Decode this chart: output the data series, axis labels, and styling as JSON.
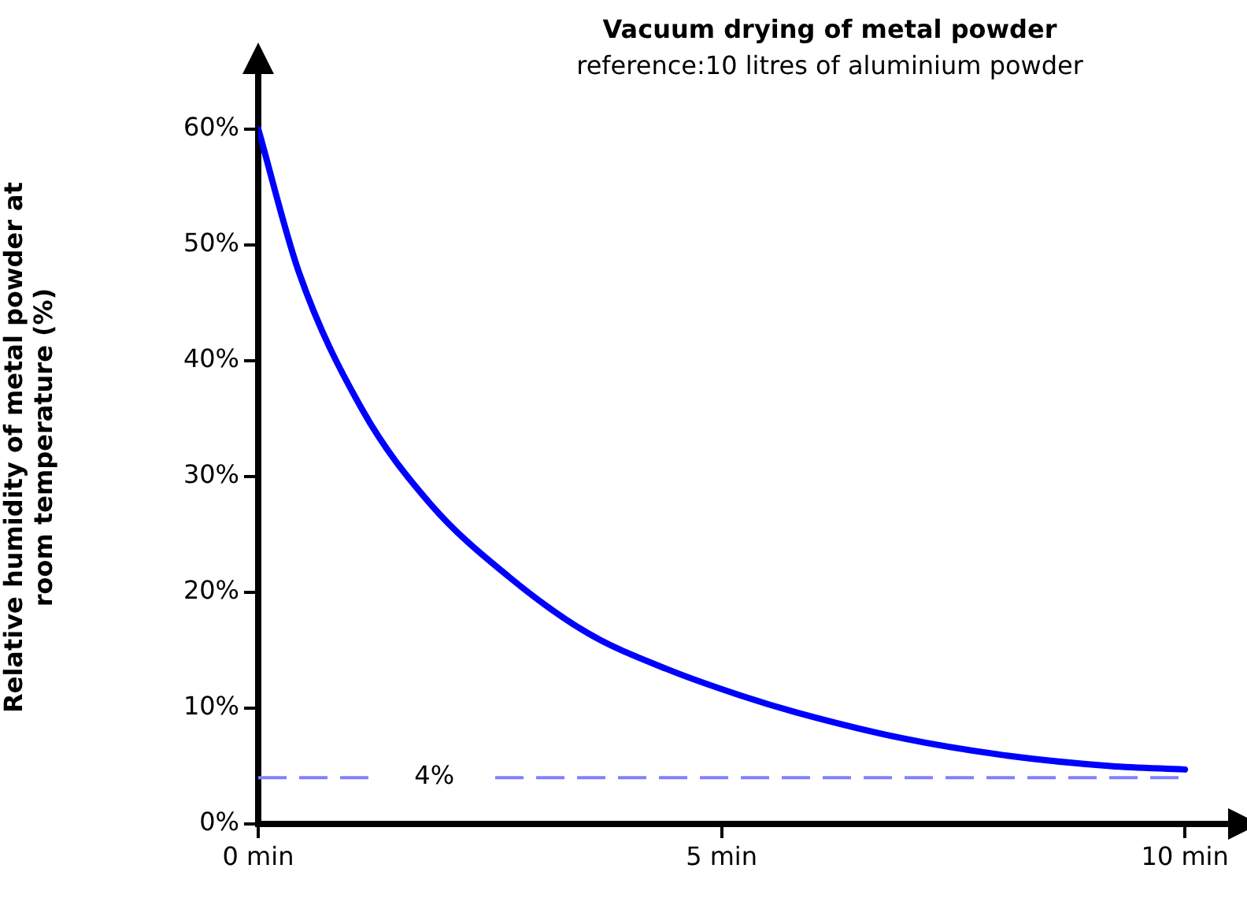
{
  "chart_data": {
    "type": "line",
    "title": "Vacuum drying of metal powder",
    "subtitle": "reference:10 litres of aluminium powder",
    "ylabel": "Relative humidity of metal powder at room temperature (%)",
    "series": [
      {
        "color": "#0000ff",
        "x": [
          0,
          0.44,
          1.12,
          1.86,
          2.71,
          3.55,
          4.4,
          5.2,
          5.82,
          6.95,
          8.08,
          9.2,
          10
        ],
        "values": [
          60,
          47.6,
          35.8,
          27.6,
          21.3,
          16.5,
          13.4,
          11.1,
          9.6,
          7.4,
          5.9,
          5,
          4.7
        ]
      }
    ],
    "xlim": [
      0,
      10.5
    ],
    "xticks": [
      {
        "value": 0,
        "label": "0 min"
      },
      {
        "value": 5,
        "label": "5 min"
      },
      {
        "value": 10,
        "label": "10 min"
      }
    ],
    "ylim": [
      0,
      65
    ],
    "yticks": [
      {
        "value": 0,
        "label": "0%"
      },
      {
        "value": 10,
        "label": "10%"
      },
      {
        "value": 20,
        "label": "20%"
      },
      {
        "value": 30,
        "label": "30%"
      },
      {
        "value": 40,
        "label": "40%"
      },
      {
        "value": 50,
        "label": "50%"
      },
      {
        "value": 60,
        "label": "60%"
      }
    ],
    "ref_lines": [
      {
        "axis": "y",
        "value": 4,
        "label": "4%",
        "color": "#8080ff",
        "line_style": "dashed"
      }
    ],
    "marker": "none",
    "line_style": "solid",
    "legend": false
  }
}
